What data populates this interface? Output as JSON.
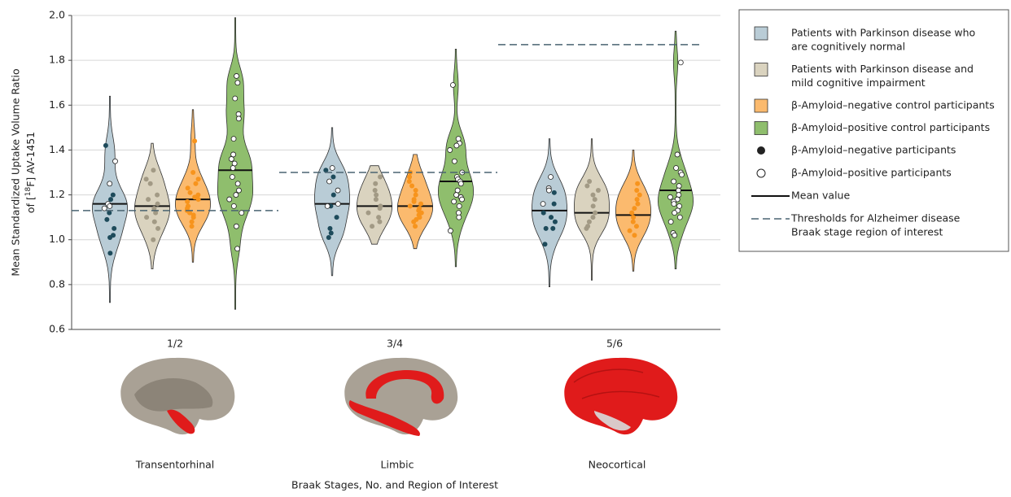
{
  "chart_data": {
    "type": "violin",
    "ylabel": {
      "line1": "Mean Standardized Uptake Volume Ratio",
      "line2_before": "of [",
      "superscript": "18",
      "line2_after": "F] AV-1451"
    },
    "xlabel": "Braak Stages, No. and Region of Interest",
    "categories": [
      "1/2",
      "3/4",
      "5/6"
    ],
    "region_labels": [
      "Transentorhinal",
      "Limbic",
      "Neocortical"
    ],
    "ylim": [
      0.6,
      2.0
    ],
    "yticks": [
      0.6,
      0.8,
      {
        "value": 1,
        "label": "1.0"
      },
      1.2,
      1.4,
      1.6,
      1.8,
      {
        "value": 2,
        "label": "2.0"
      }
    ],
    "grid": true,
    "thresholds": [
      1.13,
      1.3,
      1.87
    ],
    "threshold_color": "#4a6472",
    "series": [
      {
        "name": [
          "Patients with Parkinson disease who",
          "are cognitively normal"
        ],
        "color": "#b9ccd6",
        "point_color": "#1e4b5b",
        "means": [
          1.16,
          1.16,
          1.13
        ],
        "mins": [
          0.72,
          0.84,
          0.79
        ],
        "maxs": [
          1.64,
          1.5,
          1.45
        ],
        "negative_points": [
          [
            1.42,
            1.2,
            1.18,
            1.12,
            1.09,
            1.05,
            1.02,
            1.01,
            0.94
          ],
          [
            1.31,
            1.28,
            1.2,
            1.15,
            1.1,
            1.05,
            1.03,
            1.01
          ],
          [
            1.21,
            1.16,
            1.12,
            1.1,
            1.08,
            1.05,
            1.05,
            0.98
          ]
        ],
        "positive_points": [
          [
            1.35,
            1.25,
            1.16,
            1.15,
            1.14
          ],
          [
            1.32,
            1.26,
            1.22,
            1.16,
            1.15
          ],
          [
            1.28,
            1.23,
            1.22,
            1.16
          ]
        ]
      },
      {
        "name": [
          "Patients with Parkinson disease and",
          "mild cognitive impairment"
        ],
        "color": "#dad3bf",
        "point_color": "#a29a85",
        "means": [
          1.15,
          1.15,
          1.12
        ],
        "mins": [
          0.87,
          0.98,
          0.82
        ],
        "maxs": [
          1.43,
          1.33,
          1.45
        ],
        "negative_points": [
          [
            1.31,
            1.27,
            1.25,
            1.2,
            1.18,
            1.16,
            1.14,
            1.12,
            1.1,
            1.08,
            1.05,
            1.0
          ],
          [
            1.28,
            1.25,
            1.22,
            1.2,
            1.18,
            1.15,
            1.14,
            1.12,
            1.1,
            1.08,
            1.06
          ],
          [
            1.26,
            1.24,
            1.22,
            1.2,
            1.18,
            1.15,
            1.12,
            1.1,
            1.08,
            1.06,
            1.05
          ]
        ],
        "positive_points": [
          [],
          [],
          []
        ]
      },
      {
        "name": [
          "β-Amyloid–negative control participants"
        ],
        "color": "#fbba6e",
        "point_color": "#f7941d",
        "means": [
          1.18,
          1.15,
          1.11
        ],
        "mins": [
          0.9,
          0.96,
          0.86
        ],
        "maxs": [
          1.58,
          1.38,
          1.4
        ],
        "negative_points": [
          [
            1.44,
            1.3,
            1.27,
            1.25,
            1.23,
            1.21,
            1.2,
            1.19,
            1.18,
            1.17,
            1.15,
            1.14,
            1.13,
            1.12,
            1.11,
            1.1,
            1.08,
            1.06
          ],
          [
            1.3,
            1.28,
            1.26,
            1.24,
            1.22,
            1.2,
            1.18,
            1.17,
            1.16,
            1.15,
            1.14,
            1.13,
            1.12,
            1.11,
            1.1,
            1.09,
            1.08,
            1.06
          ],
          [
            1.25,
            1.22,
            1.2,
            1.18,
            1.16,
            1.14,
            1.12,
            1.1,
            1.08,
            1.06,
            1.04,
            1.02
          ]
        ],
        "positive_points": [
          [],
          [],
          []
        ]
      },
      {
        "name": [
          "β-Amyloid–positive control participants"
        ],
        "color": "#8fbe6d",
        "point_color": "#4f7a34",
        "means": [
          1.31,
          1.26,
          1.22
        ],
        "mins": [
          0.69,
          0.88,
          0.87
        ],
        "maxs": [
          1.99,
          1.85,
          1.93
        ],
        "negative_points": [
          [],
          [],
          []
        ],
        "positive_points": [
          [
            1.73,
            1.7,
            1.63,
            1.56,
            1.54,
            1.45,
            1.38,
            1.36,
            1.34,
            1.32,
            1.28,
            1.25,
            1.22,
            1.2,
            1.18,
            1.15,
            1.12,
            1.06,
            0.96
          ],
          [
            1.69,
            1.45,
            1.43,
            1.42,
            1.4,
            1.35,
            1.3,
            1.28,
            1.27,
            1.26,
            1.25,
            1.22,
            1.2,
            1.19,
            1.18,
            1.17,
            1.15,
            1.12,
            1.1,
            1.04
          ],
          [
            1.79,
            1.38,
            1.32,
            1.3,
            1.29,
            1.26,
            1.24,
            1.22,
            1.2,
            1.19,
            1.18,
            1.17,
            1.16,
            1.15,
            1.13,
            1.12,
            1.1,
            1.08,
            1.03,
            1.02
          ]
        ]
      }
    ],
    "legend_markers": {
      "negative": "β-Amyloid–negative participants",
      "positive": "β-Amyloid–positive participants",
      "mean": "Mean value",
      "threshold": [
        "Thresholds for Alzheimer disease",
        "Braak stage region of interest"
      ]
    }
  }
}
